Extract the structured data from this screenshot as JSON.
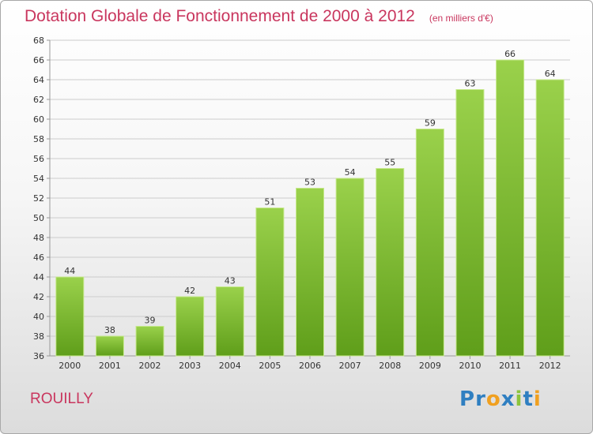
{
  "title": "Dotation Globale de Fonctionnement de 2000 à 2012",
  "unit_note": "(en milliers d'€)",
  "commune": "ROUILLY",
  "logo": {
    "text": "Proxiti",
    "letters": [
      {
        "ch": "P",
        "color": "#2f7fc1"
      },
      {
        "ch": "r",
        "color": "#2f7fc1"
      },
      {
        "ch": "o",
        "color": "#f0a020"
      },
      {
        "ch": "x",
        "color": "#2f7fc1"
      },
      {
        "ch": "i",
        "color": "#8cc43c"
      },
      {
        "ch": "t",
        "color": "#2f7fc1"
      },
      {
        "ch": "i",
        "color": "#f0a020"
      }
    ]
  },
  "colors": {
    "bar_top": "#9ad14b",
    "bar_bottom": "#5f9e1a",
    "bar_edge": "#c6e88c",
    "grid": "#cccccc",
    "axis": "#999999",
    "text": "#333333",
    "accent": "#c9365e"
  },
  "chart_data": {
    "type": "bar",
    "categories": [
      "2000",
      "2001",
      "2002",
      "2003",
      "2004",
      "2005",
      "2006",
      "2007",
      "2008",
      "2009",
      "2010",
      "2011",
      "2012"
    ],
    "values": [
      44,
      38,
      39,
      42,
      43,
      51,
      53,
      54,
      55,
      59,
      63,
      66,
      64
    ],
    "data_labels": [
      "44",
      "38",
      "39",
      "42",
      "43",
      "51",
      "53",
      "54",
      "55",
      "59",
      "63",
      "66",
      "64"
    ],
    "ylim": [
      36,
      68
    ],
    "yticks": [
      "36",
      "38",
      "40",
      "42",
      "44",
      "46",
      "48",
      "50",
      "52",
      "54",
      "56",
      "58",
      "60",
      "62",
      "64",
      "66",
      "68"
    ],
    "grid": true,
    "legend": "none"
  }
}
